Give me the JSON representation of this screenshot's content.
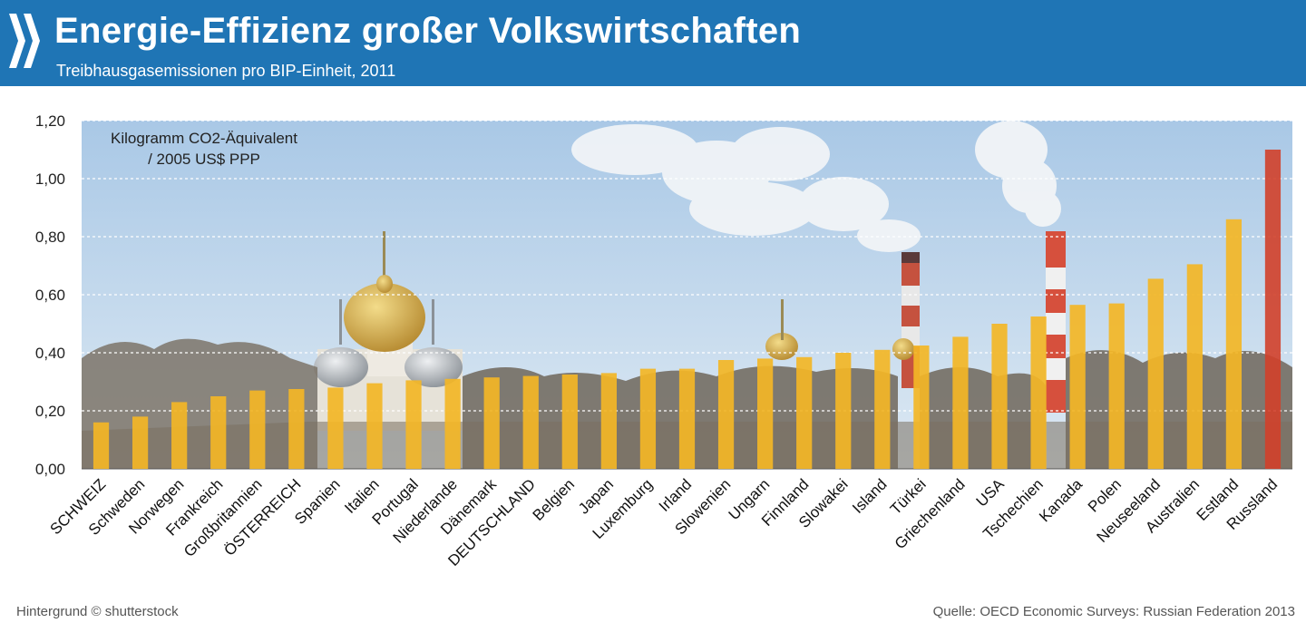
{
  "header": {
    "title": "Energie-Effizienz großer Volkswirtschaften",
    "subtitle": "Treibhausgasemissionen pro BIP-Einheit, 2011",
    "logo_icon": "oecd-chevrons-icon"
  },
  "footer": {
    "background_credit": "Hintergrund © shutterstock",
    "source": "Quelle:  OECD Economic Surveys: Russian Federation 2013"
  },
  "colors": {
    "header_bg": "#1f75b5",
    "bar_default": "#f3b626",
    "bar_highlight": "#d2402a",
    "sky_top": "#a9c8e6",
    "sky_bottom": "#dce9f4"
  },
  "chart_data": {
    "type": "bar",
    "ylabel_lines": [
      "Kilogramm CO2-Äquivalent",
      "/ 2005 US$ PPP"
    ],
    "ylim": [
      0,
      1.2
    ],
    "yticks": [
      "0,00",
      "0,20",
      "0,40",
      "0,60",
      "0,80",
      "1,00",
      "1,20"
    ],
    "grid": true,
    "categories": [
      "SCHWEIZ",
      "Schweden",
      "Norwegen",
      "Frankreich",
      "Großbritannien",
      "ÖSTERREICH",
      "Spanien",
      "Italien",
      "Portugal",
      "Niederlande",
      "Dänemark",
      "DEUTSCHLAND",
      "Belgien",
      "Japan",
      "Luxemburg",
      "Irland",
      "Slowenien",
      "Ungarn",
      "Finnland",
      "Slowakei",
      "Island",
      "Türkei",
      "Griechenland",
      "USA",
      "Tschechien",
      "Kanada",
      "Polen",
      "Neuseeland",
      "Australien",
      "Estland",
      "Russland"
    ],
    "values": [
      0.16,
      0.18,
      0.23,
      0.25,
      0.27,
      0.275,
      0.28,
      0.295,
      0.305,
      0.31,
      0.315,
      0.32,
      0.325,
      0.33,
      0.345,
      0.345,
      0.375,
      0.38,
      0.385,
      0.4,
      0.41,
      0.425,
      0.455,
      0.5,
      0.525,
      0.565,
      0.57,
      0.655,
      0.705,
      0.86,
      1.1
    ],
    "highlight": [
      "Russland"
    ]
  }
}
